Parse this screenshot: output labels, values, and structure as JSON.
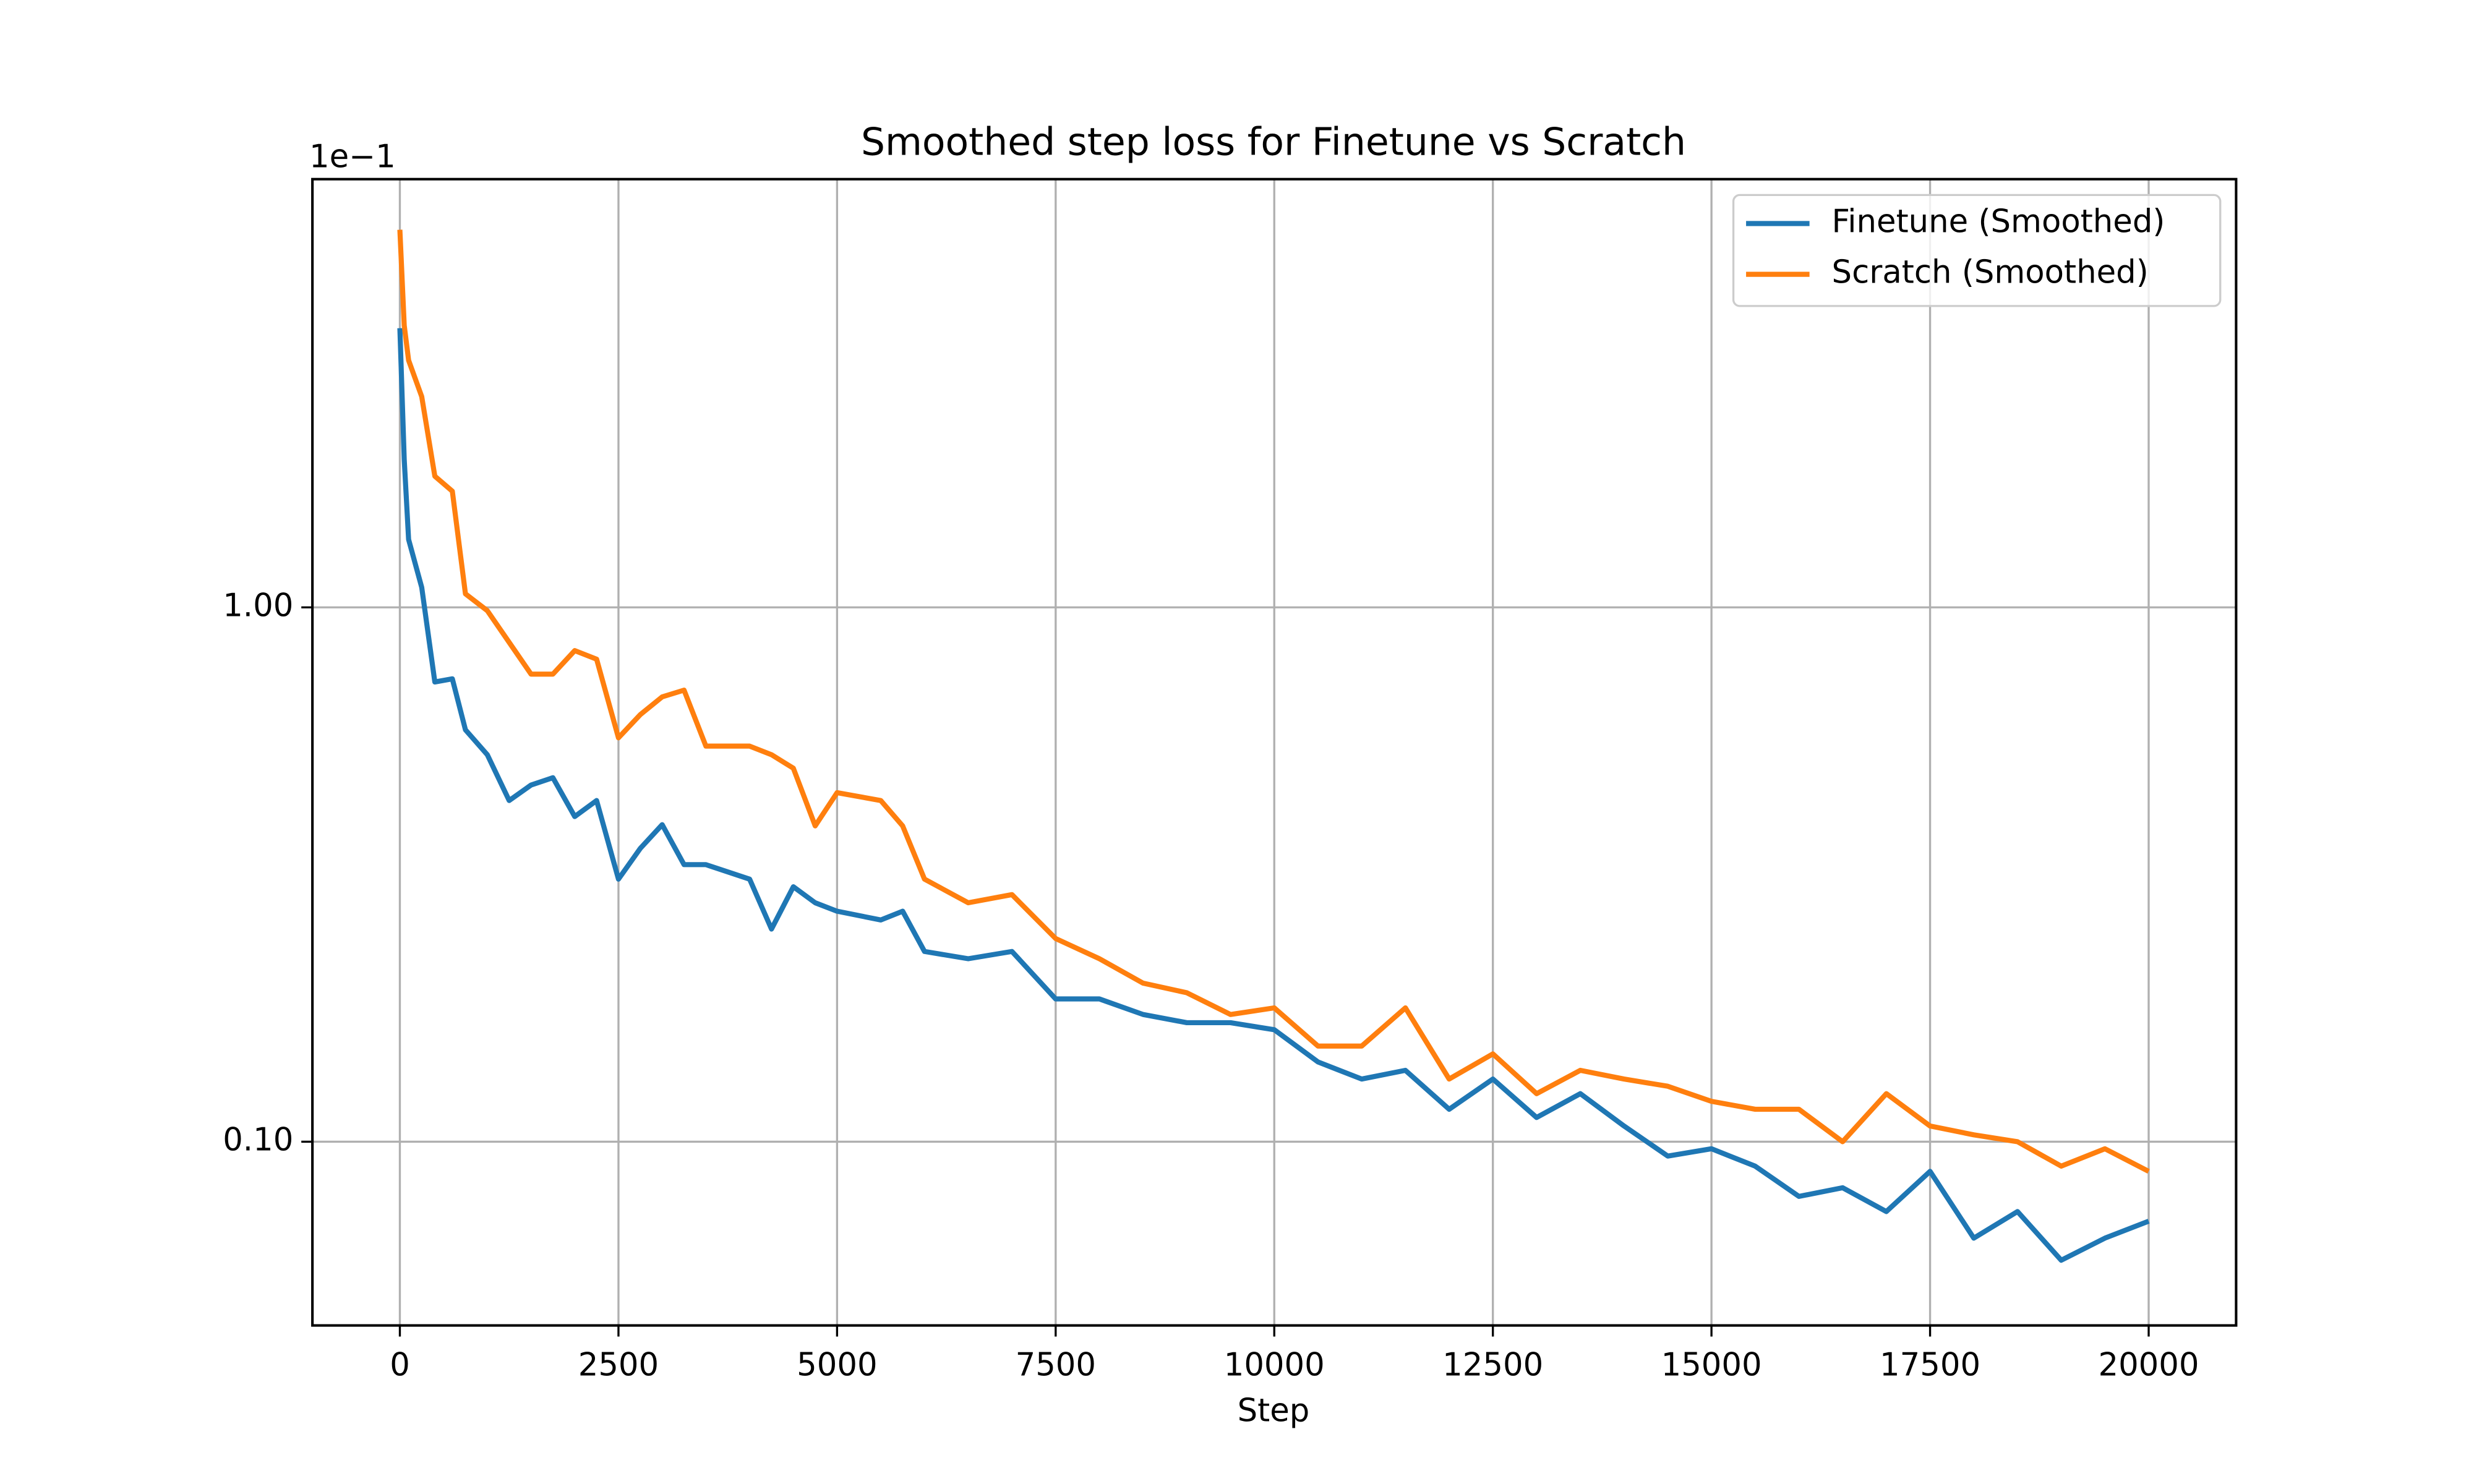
{
  "chart_data": {
    "type": "line",
    "title": "Smoothed step loss for Finetune vs Scratch",
    "x_label": "Step",
    "y_offset_label": "1e−1",
    "y_log": true,
    "grid": true,
    "legend": "upper right",
    "x": [
      0,
      50,
      100,
      250,
      400,
      600,
      750,
      1000,
      1250,
      1500,
      1750,
      2000,
      2250,
      2500,
      2750,
      3000,
      3250,
      3500,
      4000,
      4250,
      4500,
      4750,
      5000,
      5500,
      5750,
      6000,
      6500,
      7000,
      7500,
      8000,
      8500,
      9000,
      9500,
      10000,
      10500,
      11000,
      11500,
      12000,
      12500,
      13000,
      13500,
      14000,
      14500,
      15000,
      15500,
      16000,
      16500,
      17000,
      17500,
      18000,
      18500,
      19000,
      19500,
      20000
    ],
    "series": [
      {
        "name": "Finetune (Smoothed)",
        "color": "#1f77b4",
        "values": [
          3.33,
          1.89,
          1.34,
          1.09,
          0.725,
          0.735,
          0.59,
          0.53,
          0.435,
          0.465,
          0.48,
          0.406,
          0.435,
          0.31,
          0.354,
          0.392,
          0.33,
          0.33,
          0.31,
          0.25,
          0.3,
          0.28,
          0.27,
          0.26,
          0.27,
          0.227,
          0.22,
          0.227,
          0.185,
          0.185,
          0.173,
          0.167,
          0.167,
          0.162,
          0.141,
          0.131,
          0.136,
          0.115,
          0.131,
          0.111,
          0.123,
          0.107,
          0.094,
          0.097,
          0.09,
          0.079,
          0.082,
          0.074,
          0.088,
          0.066,
          0.074,
          0.06,
          0.066,
          0.071
        ]
      },
      {
        "name": "Scratch (Smoothed)",
        "color": "#ff7f0e",
        "values": [
          5.09,
          3.37,
          2.9,
          2.48,
          1.76,
          1.65,
          1.06,
          0.986,
          0.86,
          0.75,
          0.75,
          0.83,
          0.8,
          0.57,
          0.63,
          0.68,
          0.7,
          0.55,
          0.55,
          0.53,
          0.5,
          0.39,
          0.45,
          0.435,
          0.39,
          0.31,
          0.28,
          0.29,
          0.24,
          0.22,
          0.198,
          0.19,
          0.173,
          0.178,
          0.151,
          0.151,
          0.178,
          0.131,
          0.146,
          0.123,
          0.136,
          0.131,
          0.127,
          0.119,
          0.115,
          0.115,
          0.1,
          0.123,
          0.107,
          0.103,
          0.1,
          0.09,
          0.097,
          0.088
        ]
      }
    ],
    "xlim": [
      -1000,
      21000
    ],
    "xticks": [
      0,
      2500,
      5000,
      7500,
      10000,
      12500,
      15000,
      17500,
      20000
    ],
    "ylim": [
      0.0453,
      6.33
    ],
    "yticks": [
      {
        "value": 0.1,
        "label": "0.10"
      },
      {
        "value": 1,
        "label": "1.00"
      }
    ]
  }
}
